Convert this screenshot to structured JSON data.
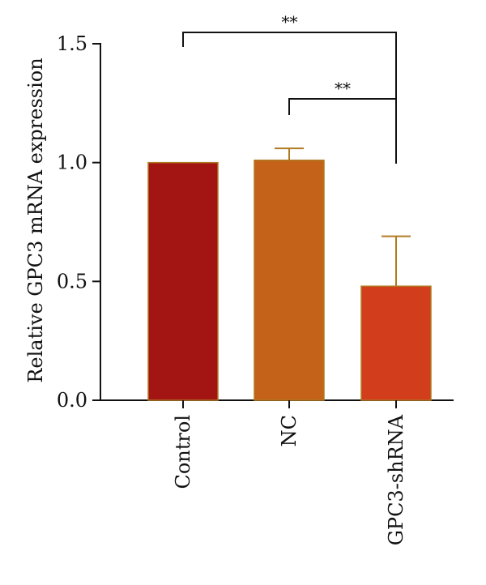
{
  "chart_data": {
    "type": "bar",
    "title": "",
    "xlabel": "",
    "ylabel": "Relative GPC3 mRNA expression",
    "ylim": [
      0,
      1.5
    ],
    "yticks": [
      0.0,
      0.5,
      1.0,
      1.5
    ],
    "ytick_labels": [
      "0.0",
      "0.5",
      "1.0",
      "1.5"
    ],
    "categories": [
      "Control",
      "NC",
      "GPC3-shRNA"
    ],
    "values": [
      1.0,
      1.01,
      0.48
    ],
    "error_upper": [
      0.0,
      0.05,
      0.21
    ],
    "bar_colors": [
      "#a31513",
      "#c4621a",
      "#d23d1c"
    ],
    "error_color": "#b07a22",
    "grid": false,
    "significance": [
      {
        "from": "Control",
        "to": "GPC3-shRNA",
        "label": "**"
      },
      {
        "from": "NC",
        "to": "GPC3-shRNA",
        "label": "**"
      }
    ]
  }
}
